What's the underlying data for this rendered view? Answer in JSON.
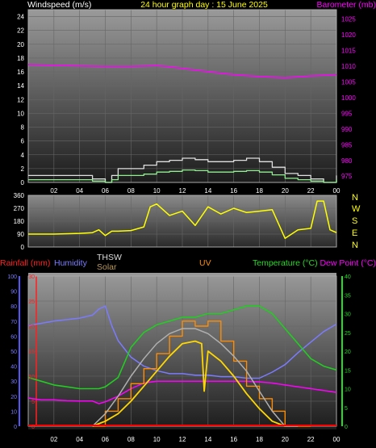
{
  "header": {
    "wind_label": "Windspeed (m/s)",
    "title": "24 hour graph day : 15 June 2025",
    "baro_label": "Barometer (mb)"
  },
  "middle_labels": {
    "rain": "Rainfall (mm)",
    "humidity": "Humidity",
    "thsw": "THSW",
    "solar": "Solar",
    "uv": "UV",
    "temp": "Temperature (°C)",
    "dew": "Dew Point (°C)"
  },
  "colors": {
    "wind_gust": "#e0e0e0",
    "wind_avg": "#90ee90",
    "barometer": "#ff00ff",
    "direction": "#ffff00",
    "rain": "#ff0000",
    "humidity": "#7b7bff",
    "solar": "#ff8c00",
    "uv": "#ffd700",
    "temperature": "#22cc22",
    "dew": "#ff00ff",
    "thsw": "#b0b0b0"
  },
  "chart_data": [
    {
      "type": "line",
      "name": "wind_baro",
      "x_ticks": [
        "02",
        "04",
        "06",
        "08",
        "10",
        "12",
        "14",
        "16",
        "18",
        "20",
        "22",
        "00"
      ],
      "y_left_ticks": [
        "0",
        "2",
        "4",
        "6",
        "8",
        "10",
        "12",
        "14",
        "16",
        "18",
        "20",
        "22",
        "24"
      ],
      "y_left_lim": [
        0,
        25
      ],
      "y_right_ticks": [
        "975",
        "980",
        "985",
        "990",
        "995",
        "1000",
        "1005",
        "1010",
        "1015",
        "1020",
        "1025"
      ],
      "y_right_lim": [
        973,
        1028
      ],
      "series": [
        {
          "key": "gust",
          "x": [
            0,
            1,
            2,
            3,
            4,
            5,
            6,
            6.5,
            7,
            8,
            9,
            10,
            11,
            12,
            13,
            14,
            15,
            16,
            17,
            18,
            19,
            20,
            21,
            22,
            23,
            24
          ],
          "values": [
            1,
            1,
            1,
            1,
            1,
            0.5,
            0,
            1,
            2,
            2,
            2.5,
            3,
            3.2,
            3.5,
            3.3,
            3,
            3,
            3.2,
            3.5,
            3,
            2.2,
            1.3,
            1,
            0.5,
            0,
            1
          ]
        },
        {
          "key": "avg",
          "x": [
            0,
            1,
            2,
            3,
            4,
            5,
            6,
            6.5,
            7,
            8,
            9,
            10,
            11,
            12,
            13,
            14,
            15,
            16,
            17,
            18,
            19,
            20,
            21,
            22,
            23,
            24
          ],
          "values": [
            0.4,
            0.4,
            0.4,
            0.4,
            0.4,
            0.2,
            0,
            0.4,
            1,
            1,
            1.2,
            1.5,
            1.6,
            1.8,
            1.7,
            1.5,
            1.5,
            1.6,
            1.7,
            1.5,
            1.1,
            0.6,
            0.4,
            0.2,
            0,
            0.4
          ]
        },
        {
          "key": "baro",
          "x": [
            0,
            2,
            4,
            6,
            8,
            10,
            11,
            12,
            14,
            16,
            18,
            20,
            22,
            24
          ],
          "values": [
            1010.5,
            1010.3,
            1010.1,
            1009.9,
            1009.9,
            1010.2,
            1009.8,
            1009.3,
            1008.3,
            1007.3,
            1006.7,
            1006.3,
            1006.9,
            1007.3
          ]
        }
      ]
    },
    {
      "type": "line",
      "name": "wind_direction",
      "x_ticks": [
        "02",
        "04",
        "06",
        "08",
        "10",
        "12",
        "14",
        "16",
        "18",
        "20",
        "22",
        "00"
      ],
      "y_left_ticks": [
        "0",
        "90",
        "180",
        "270",
        "360"
      ],
      "y_lim": [
        0,
        360
      ],
      "y_right_labels": [
        "N",
        "W",
        "S",
        "E",
        "N"
      ],
      "series": [
        {
          "key": "dir",
          "x": [
            0,
            2,
            4,
            5,
            5.5,
            6,
            6.5,
            7,
            8,
            9,
            9.5,
            10,
            11,
            12,
            13,
            14,
            15,
            16,
            17,
            18,
            19,
            20,
            20.5,
            21,
            22,
            22.5,
            23,
            23.5,
            24
          ],
          "values": [
            90,
            90,
            95,
            100,
            120,
            80,
            110,
            110,
            115,
            140,
            280,
            300,
            220,
            250,
            150,
            280,
            230,
            270,
            240,
            250,
            260,
            60,
            90,
            120,
            130,
            320,
            320,
            120,
            100
          ]
        }
      ]
    },
    {
      "type": "line",
      "name": "weather",
      "x_ticks": [
        "02",
        "04",
        "06",
        "08",
        "10",
        "12",
        "14",
        "16",
        "18",
        "20",
        "22",
        "00"
      ],
      "humidity_ticks": [
        "0",
        "10",
        "20",
        "30",
        "40",
        "50",
        "60",
        "70",
        "80",
        "90",
        "100"
      ],
      "humidity_lim": [
        0,
        100
      ],
      "rain_ticks": [
        "0",
        "5",
        "10",
        "15",
        "20",
        "25",
        "30"
      ],
      "rain_lim": [
        0,
        30
      ],
      "temp_ticks": [
        "0",
        "5",
        "10",
        "15",
        "20",
        "25",
        "30",
        "35",
        "40"
      ],
      "temp_lim": [
        0,
        40
      ],
      "series": [
        {
          "key": "humidity",
          "x": [
            0,
            2,
            4,
            5,
            5.5,
            6,
            6.5,
            7,
            8,
            9,
            10,
            11,
            12,
            13,
            14,
            15,
            16,
            17,
            18,
            19,
            20,
            21,
            22,
            23,
            24
          ],
          "values": [
            67,
            70,
            72,
            74,
            78,
            80,
            67,
            57,
            46,
            40,
            37,
            35,
            35,
            34,
            34,
            33,
            33,
            32,
            32,
            36,
            41,
            49,
            56,
            63,
            68
          ]
        },
        {
          "key": "temperature",
          "x": [
            0,
            1,
            2,
            3,
            4,
            5,
            5.5,
            6,
            7,
            8,
            9,
            10,
            11,
            12,
            13,
            14,
            15,
            16,
            17,
            18,
            19,
            20,
            21,
            22,
            23,
            24
          ],
          "values": [
            13,
            12,
            11,
            10.5,
            10,
            10,
            10,
            10.5,
            13,
            21,
            25,
            27,
            28,
            29,
            29,
            30,
            30,
            31,
            32,
            32,
            30,
            26,
            22,
            18,
            16,
            15
          ]
        },
        {
          "key": "dew",
          "x": [
            0,
            1,
            2,
            3,
            4,
            5,
            5.5,
            6,
            7,
            8,
            9,
            10,
            11,
            12,
            13,
            14,
            15,
            16,
            17,
            18,
            19,
            20,
            21,
            22,
            23,
            24
          ],
          "values": [
            7.5,
            7,
            7,
            6.8,
            6.7,
            6.7,
            6,
            6.5,
            8,
            10,
            11.5,
            12,
            12,
            12,
            12,
            12,
            12,
            12,
            12,
            11.8,
            11.5,
            11,
            10.5,
            10,
            9.5,
            9
          ]
        },
        {
          "key": "solar",
          "x": [
            5,
            6,
            7,
            8,
            9,
            10,
            11,
            12,
            13,
            14,
            15,
            16,
            17,
            18,
            19,
            20,
            21,
            22
          ],
          "values": [
            0,
            3,
            5.5,
            8.5,
            11.5,
            14.5,
            18,
            21,
            20,
            21,
            17,
            13,
            8,
            5.5,
            3,
            0,
            0,
            0
          ]
        },
        {
          "key": "uv",
          "x": [
            5,
            6,
            7,
            8,
            9,
            10,
            11,
            12,
            13,
            13.5,
            13.7,
            14,
            15,
            16,
            17,
            18,
            19,
            20
          ],
          "values": [
            0,
            1,
            2.5,
            5,
            8,
            11,
            14,
            16.5,
            17,
            16.5,
            7,
            15,
            13,
            10,
            6.5,
            3.5,
            1,
            0
          ]
        },
        {
          "key": "thsw",
          "x": [
            5,
            6,
            7,
            8,
            9,
            10,
            11,
            12,
            13,
            14,
            15,
            16,
            17,
            18,
            19,
            20,
            21
          ],
          "values": [
            0,
            2.5,
            6,
            10,
            13.5,
            16.5,
            18.5,
            19.5,
            19.5,
            18.5,
            16.5,
            14,
            11,
            7,
            3,
            0,
            0
          ]
        },
        {
          "key": "rain",
          "x": [
            0,
            24
          ],
          "values": [
            0,
            0
          ]
        }
      ]
    }
  ]
}
